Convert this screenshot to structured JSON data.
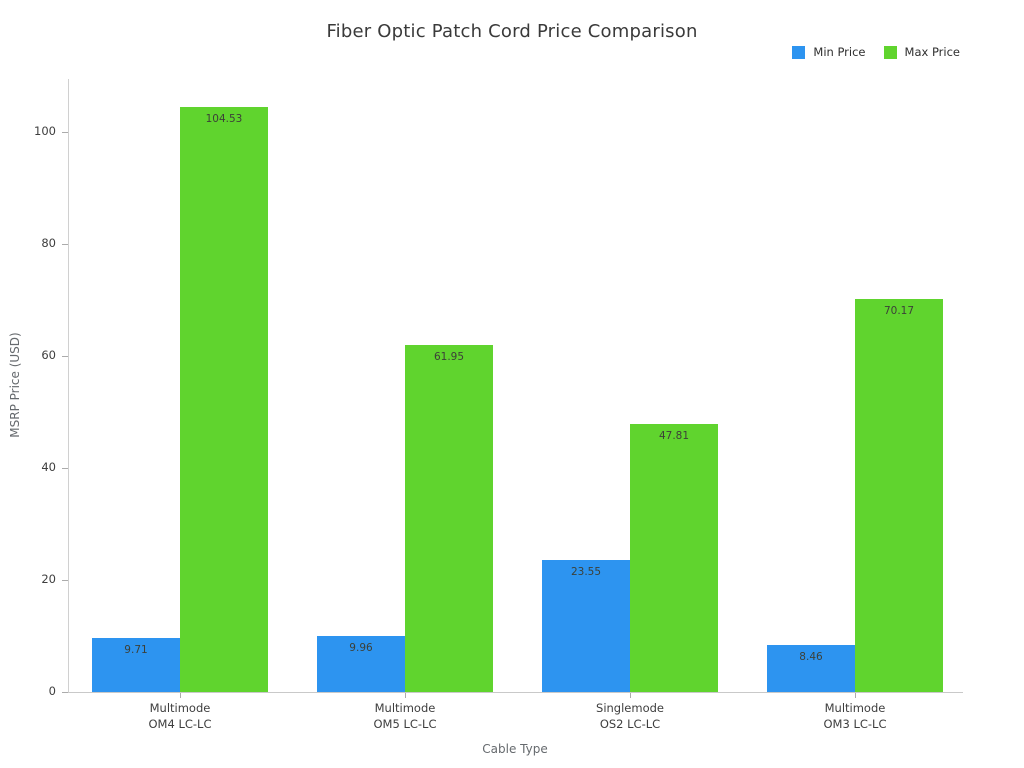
{
  "title": "Fiber Optic Patch Cord Price Comparison",
  "legend": {
    "position": "top-right",
    "items": [
      {
        "label": "Min Price",
        "color": "#2d94f0"
      },
      {
        "label": "Max Price",
        "color": "#60d42e"
      }
    ]
  },
  "chart_data": {
    "type": "bar",
    "title": "Fiber Optic Patch Cord Price Comparison",
    "xlabel": "Cable Type",
    "ylabel": "MSRP Price (USD)",
    "categories": [
      "Multimode\nOM4 LC-LC",
      "Multimode\nOM5 LC-LC",
      "Singlemode\nOS2 LC-LC",
      "Multimode\nOM3 LC-LC"
    ],
    "series": [
      {
        "name": "Min Price",
        "color": "#2d94f0",
        "values": [
          9.71,
          9.96,
          23.55,
          8.46
        ]
      },
      {
        "name": "Max Price",
        "color": "#60d42e",
        "values": [
          104.53,
          61.95,
          47.81,
          70.17
        ]
      }
    ],
    "value_labels": [
      "9.71",
      "9.96",
      "23.55",
      "8.46",
      "104.53",
      "61.95",
      "47.81",
      "70.17"
    ],
    "yticks": [
      0,
      20,
      40,
      60,
      80,
      100
    ],
    "ylim": [
      0,
      109.5
    ],
    "grid": false,
    "legend_position": "top-right",
    "value_labels_shown": true
  }
}
